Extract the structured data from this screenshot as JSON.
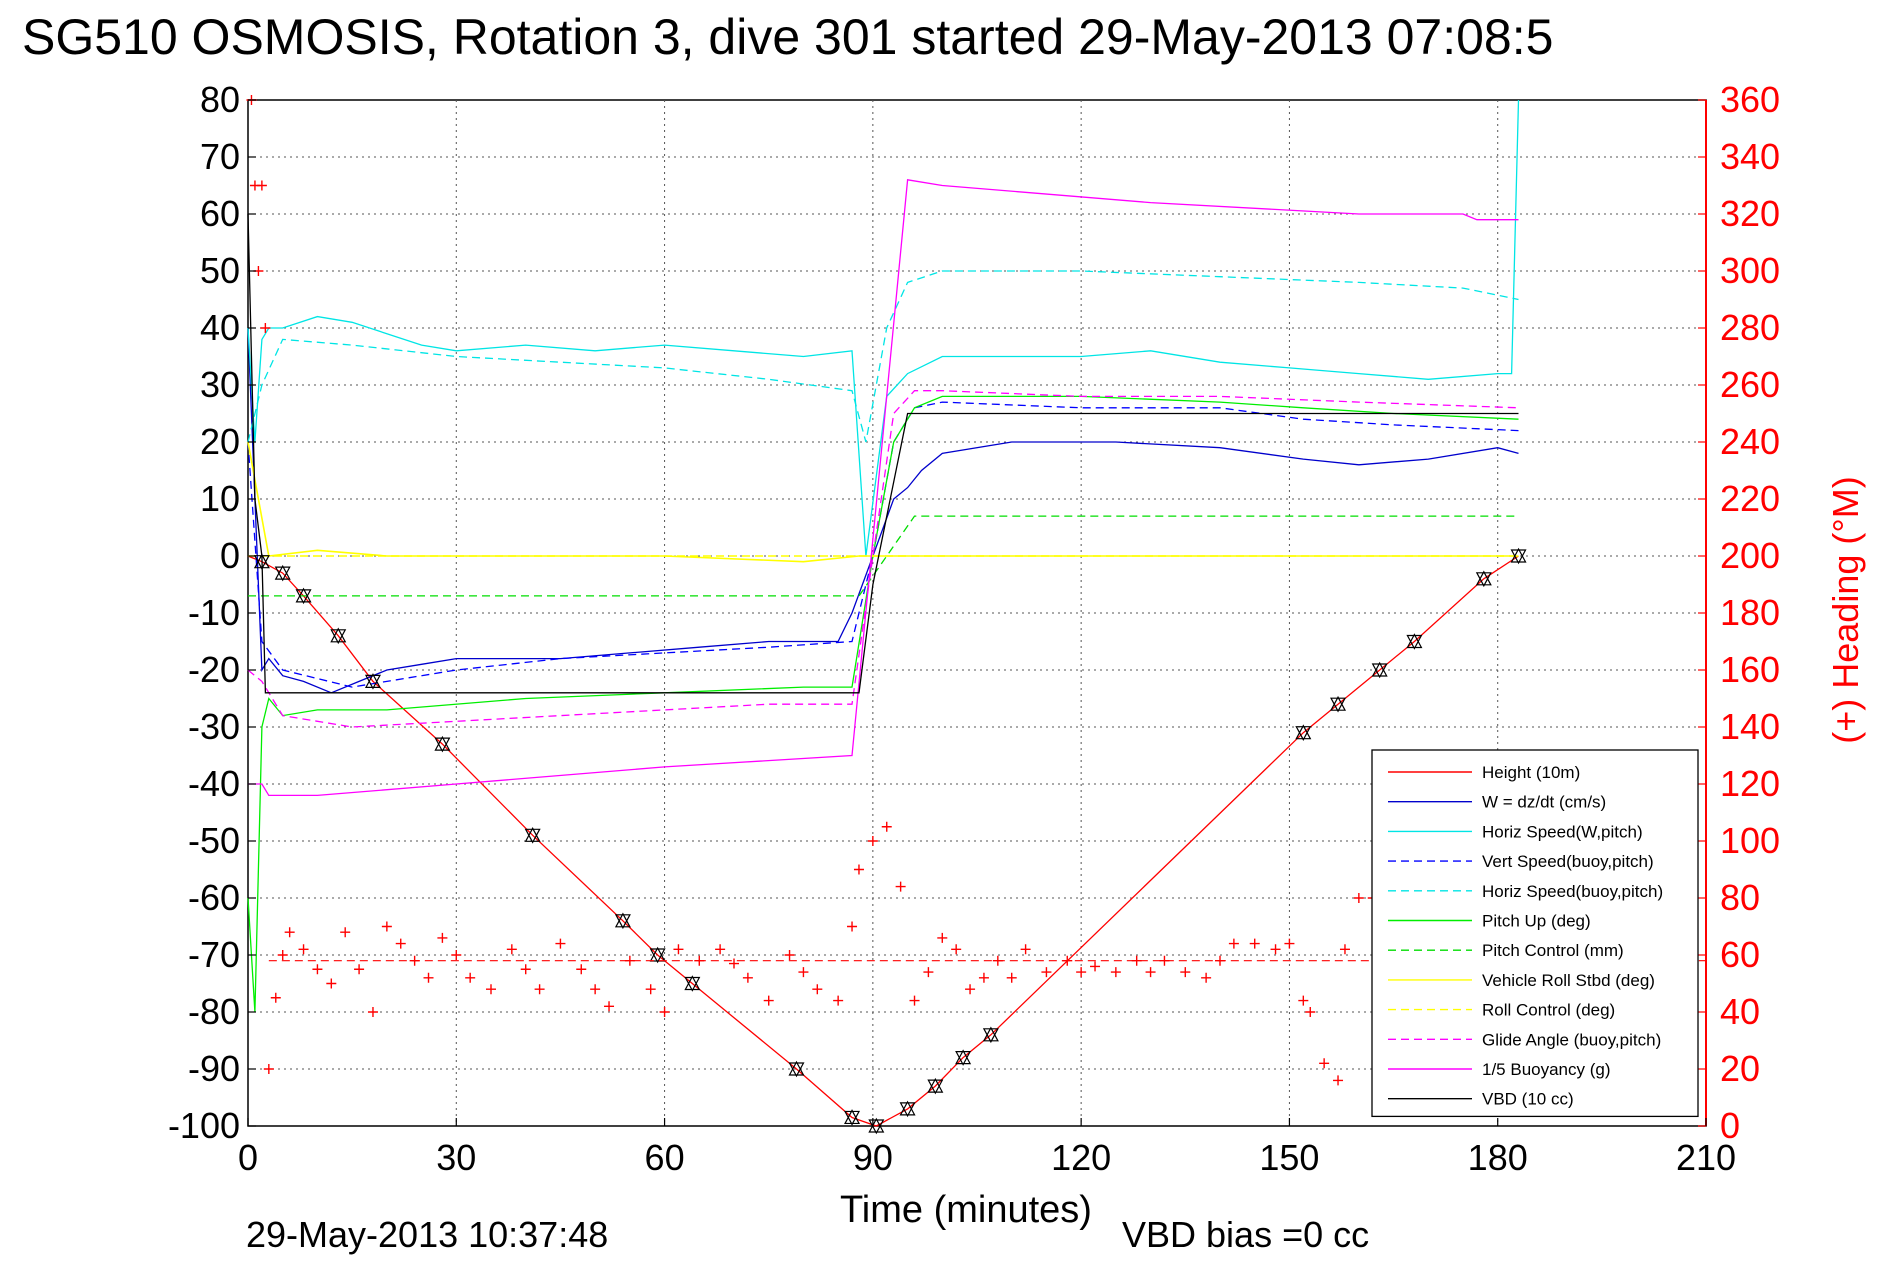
{
  "chart_data": {
    "type": "line",
    "title": "SG510 OSMOSIS, Rotation 3, dive 301 started 29-May-2013 07:08:5",
    "xlabel": "Time (minutes)",
    "ylabel": "",
    "y2label": "(+) Heading (°M)",
    "footer_left": "29-May-2013 10:37:48",
    "footer_right": "VBD bias =0 cc",
    "xlim": [
      0,
      210
    ],
    "ylim": [
      -100,
      80
    ],
    "y2lim": [
      0,
      360
    ],
    "x_ticks": [
      "0",
      "30",
      "60",
      "90",
      "120",
      "150",
      "180",
      "210"
    ],
    "y_ticks": [
      "80",
      "70",
      "60",
      "50",
      "40",
      "30",
      "20",
      "10",
      "0",
      "-10",
      "-20",
      "-30",
      "-40",
      "-50",
      "-60",
      "-70",
      "-80",
      "-90",
      "-100"
    ],
    "y2_ticks": [
      "360",
      "340",
      "320",
      "300",
      "280",
      "260",
      "240",
      "220",
      "200",
      "180",
      "160",
      "140",
      "120",
      "100",
      "80",
      "60",
      "40",
      "20",
      "0"
    ],
    "grid": true,
    "legend_position": "bottom-right",
    "series": [
      {
        "name": "Height (10m)",
        "color": "#ff0000",
        "style": "solid",
        "x": [
          0,
          2,
          5,
          8,
          13,
          18,
          28,
          41,
          54,
          59,
          64,
          79,
          87,
          90.5,
          95,
          99,
          103,
          107,
          152,
          157,
          163,
          168,
          178,
          183
        ],
        "y": [
          0,
          -1,
          -3,
          -7,
          -14,
          -22,
          -33,
          -49,
          -64,
          -70,
          -75,
          -90,
          -98.5,
          -100,
          -97,
          -93,
          -88,
          -84,
          -31,
          -26,
          -20,
          -15,
          -4,
          0
        ]
      },
      {
        "name": "W = dz/dt (cm/s)",
        "color": "#0000cc",
        "style": "solid",
        "x": [
          0,
          1,
          2,
          3,
          5,
          8,
          12,
          16,
          20,
          25,
          30,
          35,
          45,
          55,
          65,
          75,
          85,
          87,
          90,
          93,
          95,
          97,
          100,
          110,
          125,
          140,
          152,
          160,
          170,
          180,
          183
        ],
        "y": [
          40,
          10,
          -20,
          -18,
          -21,
          -22,
          -24,
          -22,
          -20,
          -19,
          -18,
          -18,
          -18,
          -17,
          -16,
          -15,
          -15,
          -10,
          0,
          10,
          12,
          15,
          18,
          20,
          20,
          19,
          17,
          16,
          17,
          19,
          18
        ]
      },
      {
        "name": "Horiz Speed(W,pitch)",
        "color": "#00e5e5",
        "style": "solid",
        "x": [
          0,
          1,
          2,
          3,
          5,
          10,
          15,
          20,
          25,
          30,
          40,
          50,
          60,
          70,
          80,
          87,
          89,
          92,
          95,
          100,
          110,
          120,
          130,
          140,
          150,
          160,
          170,
          180,
          182,
          183
        ],
        "y": [
          40,
          20,
          38,
          40,
          40,
          42,
          41,
          39,
          37,
          36,
          37,
          36,
          37,
          36,
          35,
          36,
          0,
          28,
          32,
          35,
          35,
          35,
          36,
          34,
          33,
          32,
          31,
          32,
          32,
          80
        ]
      },
      {
        "name": "Vert Speed(buoy,pitch)",
        "color": "#0000ff",
        "style": "dashed",
        "x": [
          0,
          2,
          5,
          15,
          30,
          45,
          60,
          75,
          87,
          90,
          93,
          96,
          100,
          120,
          140,
          152,
          165,
          183
        ],
        "y": [
          20,
          -15,
          -20,
          -23,
          -20,
          -18,
          -17,
          -16,
          -15,
          0,
          20,
          26,
          27,
          26,
          26,
          24,
          23,
          22
        ]
      },
      {
        "name": "Horiz Speed(buoy,pitch)",
        "color": "#00e5e5",
        "style": "dashed",
        "x": [
          0,
          2,
          5,
          15,
          30,
          45,
          60,
          75,
          87,
          89,
          92,
          95,
          100,
          120,
          140,
          160,
          175,
          183
        ],
        "y": [
          20,
          30,
          38,
          37,
          35,
          34,
          33,
          31,
          29,
          20,
          40,
          48,
          50,
          50,
          49,
          48,
          47,
          45
        ]
      },
      {
        "name": "Pitch Up (deg)",
        "color": "#00ee00",
        "style": "solid",
        "x": [
          0,
          1,
          2,
          3,
          5,
          10,
          20,
          40,
          60,
          80,
          87,
          90,
          93,
          96,
          100,
          120,
          140,
          152,
          165,
          183
        ],
        "y": [
          -60,
          -80,
          -30,
          -25,
          -28,
          -27,
          -27,
          -25,
          -24,
          -23,
          -23,
          0,
          20,
          26,
          28,
          28,
          27,
          26,
          25,
          24
        ]
      },
      {
        "name": "Pitch Control (mm)",
        "color": "#00dd00",
        "style": "dashed",
        "x": [
          0,
          3,
          88,
          96,
          183
        ],
        "y": [
          -7,
          -7,
          -7,
          7,
          7
        ]
      },
      {
        "name": "Vehicle Roll Stbd (deg)",
        "color": "#ffff00",
        "style": "solid",
        "x": [
          0,
          3,
          10,
          20,
          40,
          60,
          80,
          88,
          92,
          96,
          120,
          150,
          183
        ],
        "y": [
          20,
          0,
          1,
          0,
          0,
          0,
          -1,
          0,
          0,
          0,
          0,
          0,
          0
        ]
      },
      {
        "name": "Roll Control (deg)",
        "color": "#ffff00",
        "style": "dashed",
        "x": [
          0,
          3,
          88,
          92,
          183
        ],
        "y": [
          0,
          0,
          0,
          0,
          0
        ]
      },
      {
        "name": "Glide Angle (buoy,pitch)",
        "color": "#ff00ff",
        "style": "dashed",
        "x": [
          0,
          2,
          5,
          15,
          30,
          45,
          60,
          75,
          87,
          90,
          93,
          96,
          100,
          120,
          140,
          160,
          183
        ],
        "y": [
          -20,
          -22,
          -28,
          -30,
          -29,
          -28,
          -27,
          -26,
          -26,
          0,
          25,
          29,
          29,
          28,
          28,
          27,
          26
        ]
      },
      {
        "name": "1/5 Buoyancy (g)",
        "color": "#ff00ff",
        "style": "solid",
        "x": [
          0,
          2,
          3,
          10,
          30,
          60,
          87,
          95,
          100,
          130,
          160,
          175,
          177,
          183
        ],
        "y": [
          -40,
          -40,
          -42,
          -42,
          -40,
          -37,
          -35,
          66,
          65,
          62,
          60,
          60,
          59,
          59
        ]
      },
      {
        "name": "VBD (10 cc)",
        "color": "#000000",
        "style": "solid",
        "x": [
          0,
          1,
          2,
          2.5,
          88,
          90,
          95,
          183
        ],
        "y": [
          60,
          10,
          0,
          -24,
          -24,
          -5,
          25,
          25
        ]
      }
    ],
    "heading_series": {
      "marker": "+",
      "color": "#ff0000",
      "reference_line": 58,
      "x": [
        0.5,
        1,
        1.5,
        2,
        2.5,
        3,
        4,
        5,
        6,
        8,
        10,
        12,
        14,
        16,
        18,
        20,
        22,
        24,
        26,
        28,
        30,
        32,
        35,
        38,
        40,
        42,
        45,
        48,
        50,
        52,
        55,
        58,
        60,
        62,
        65,
        68,
        70,
        72,
        75,
        78,
        80,
        82,
        85,
        87,
        88,
        90,
        92,
        94,
        96,
        98,
        100,
        102,
        104,
        106,
        108,
        110,
        112,
        115,
        118,
        120,
        122,
        125,
        128,
        130,
        132,
        135,
        138,
        140,
        142,
        145,
        148,
        150,
        152,
        153,
        155,
        157,
        158,
        160,
        162
      ],
      "y": [
        360,
        330,
        300,
        330,
        280,
        20,
        45,
        60,
        68,
        62,
        55,
        50,
        68,
        55,
        40,
        70,
        64,
        58,
        52,
        66,
        60,
        52,
        48,
        62,
        55,
        48,
        64,
        55,
        48,
        42,
        58,
        48,
        40,
        62,
        58,
        62,
        57,
        52,
        44,
        60,
        54,
        48,
        44,
        70,
        90,
        100,
        105,
        84,
        44,
        54,
        66,
        62,
        48,
        52,
        58,
        52,
        62,
        54,
        58,
        54,
        56,
        54,
        58,
        54,
        58,
        54,
        52,
        58,
        64,
        64,
        62,
        64,
        44,
        40,
        22,
        16,
        62,
        80,
        80
      ]
    }
  }
}
